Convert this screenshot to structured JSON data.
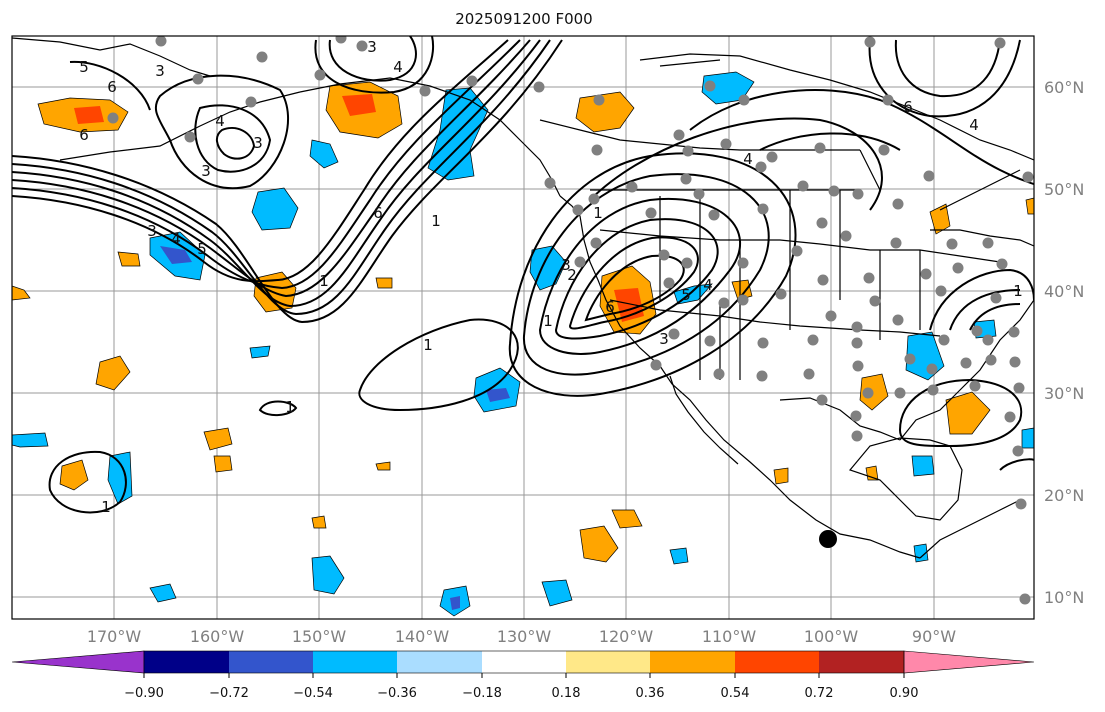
{
  "title": "2025091200 F000",
  "lat_labels": [
    "60°N",
    "50°N",
    "40°N",
    "30°N",
    "20°N",
    "10°N"
  ],
  "lon_labels": [
    "170°W",
    "160°W",
    "150°W",
    "140°W",
    "130°W",
    "120°W",
    "110°W",
    "100°W",
    "90°W"
  ],
  "colorbar": {
    "ticks": [
      "−0.90",
      "−0.72",
      "−0.54",
      "−0.36",
      "−0.18",
      "0.18",
      "0.36",
      "0.54",
      "0.72",
      "0.90"
    ],
    "colors": [
      "#9933CC",
      "#000088",
      "#3355CC",
      "#00BBFF",
      "#AADDFF",
      "#FFFFFF",
      "#FFE888",
      "#FFA500",
      "#FF4500",
      "#B22222",
      "#FF88AA"
    ]
  },
  "contour_labels": [
    "5",
    "6",
    "6",
    "3",
    "4",
    "3",
    "4",
    "3",
    "3",
    "6",
    "1",
    "5",
    "4",
    "3",
    "1",
    "1",
    "1",
    "1",
    "1",
    "6",
    "5",
    "4",
    "3",
    "2",
    "1",
    "3",
    "4",
    "6",
    "4",
    "1"
  ],
  "colors": {
    "land": "#000000",
    "grid": "#999999",
    "stations": "#808080",
    "contour": "#000000"
  }
}
